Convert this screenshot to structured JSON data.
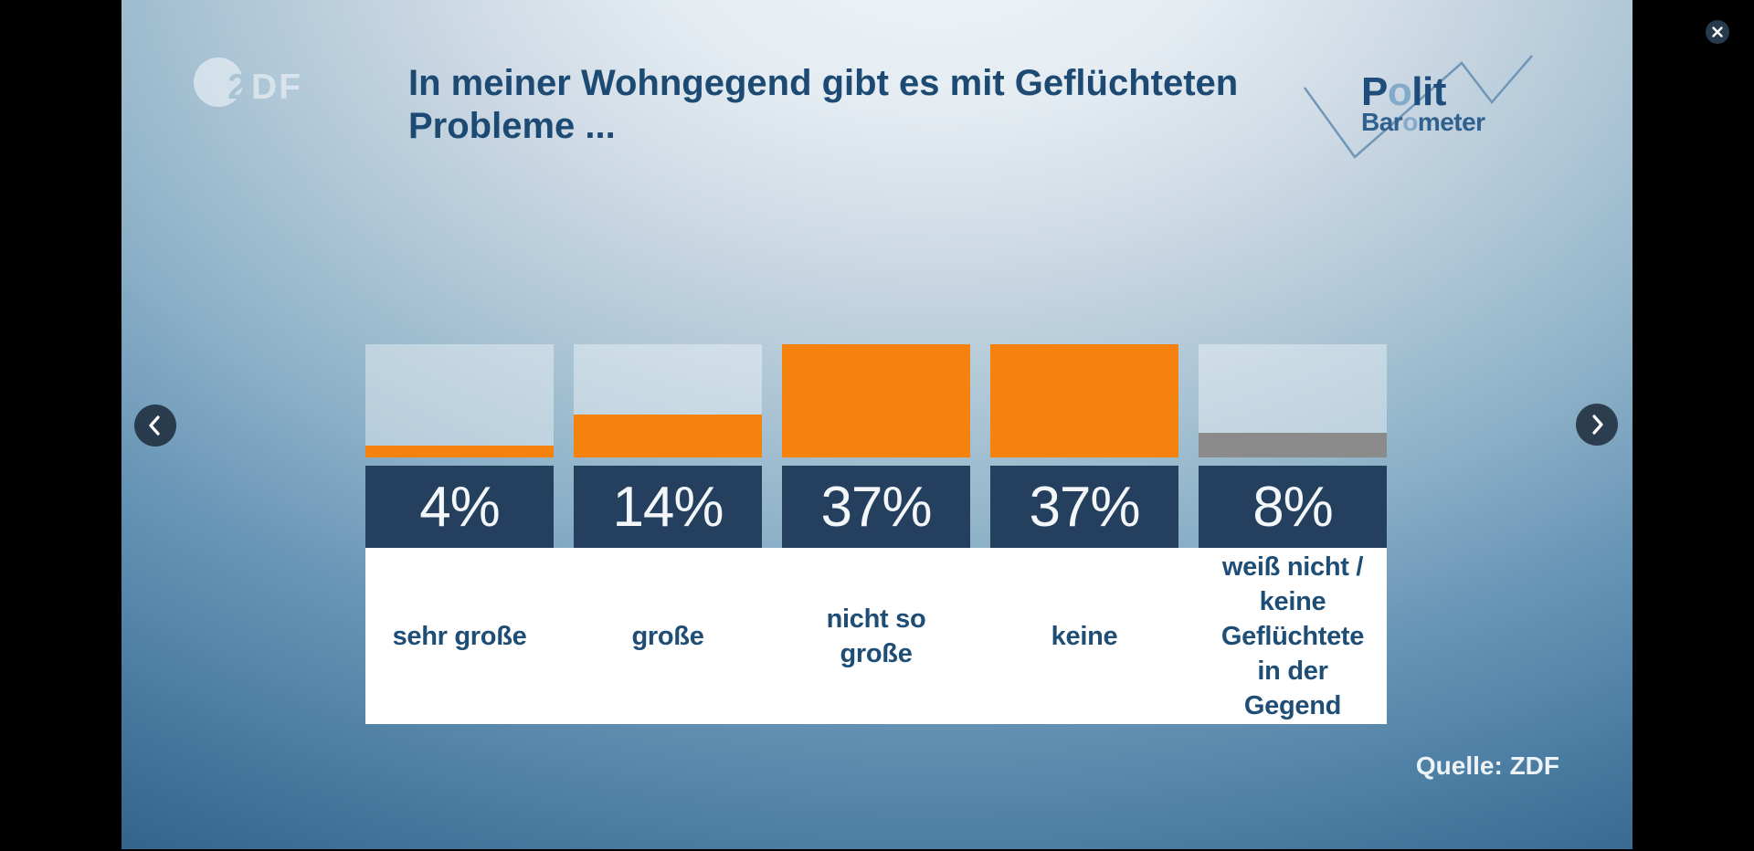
{
  "lightbox": {
    "controls": {
      "close": "close-icon",
      "prev": "chevron-left-icon",
      "next": "chevron-right-icon"
    }
  },
  "slide": {
    "title_line1": "In meiner Wohngegend gibt es mit Geflüchteten",
    "title_line2": "Probleme ...",
    "source": "Quelle: ZDF",
    "zdf_logo": {
      "knockout_char": "2",
      "letters": "DF"
    },
    "politbarometer_logo": {
      "word1_pre": "P",
      "word1_o": "o",
      "word1_post": "lit",
      "word2_pre": "Bar",
      "word2_o": "o",
      "word2_post": "meter"
    }
  },
  "chart_data": {
    "type": "bar",
    "title": "In meiner Wohngegend gibt es mit Geflüchteten Probleme ...",
    "categories": [
      "sehr große",
      "große",
      "nicht so große",
      "keine",
      "weiß nicht / keine Geflüchtete in der Gegend"
    ],
    "categories_display": [
      "sehr große",
      "große",
      "nicht so\ngroße",
      "keine",
      "weiß nicht /\nkeine\nGeflüchtete\nin der\nGegend"
    ],
    "values": [
      4,
      14,
      37,
      37,
      8
    ],
    "value_labels": [
      "4%",
      "14%",
      "37%",
      "37%",
      "8%"
    ],
    "unit": "%",
    "scale_max": 37,
    "bar_colors": [
      "#f5820f",
      "#f5820f",
      "#f5820f",
      "#f5820f",
      "#8b8b8b"
    ],
    "legend": null,
    "grid": false,
    "source": "Quelle: ZDF"
  },
  "colors": {
    "accent_orange": "#f5820f",
    "neutral_gray": "#8b8b8b",
    "value_box_navy": "#24405e",
    "title_blue": "#1c4a73",
    "label_blue": "#1e4d75",
    "track_overlay": "rgba(255,255,255,0.38)"
  }
}
